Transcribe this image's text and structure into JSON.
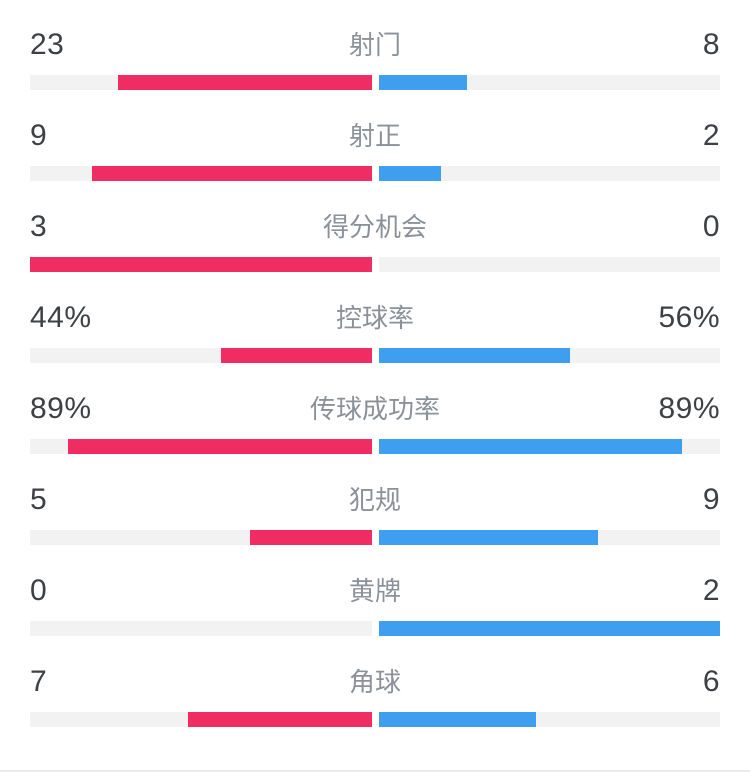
{
  "theme": {
    "page_background": "#ffffff",
    "home_color": "#f02d63",
    "away_color": "#3e9ff0",
    "track_color": "#f2f2f3",
    "number_color": "#3d4145",
    "label_color": "#8b9199",
    "divider_color": "#ededed"
  },
  "stats": [
    {
      "label": "射门",
      "home": "23",
      "away": "8",
      "home_pct": 74.2,
      "away_pct": 25.8
    },
    {
      "label": "射正",
      "home": "9",
      "away": "2",
      "home_pct": 81.8,
      "away_pct": 18.2
    },
    {
      "label": "得分机会",
      "home": "3",
      "away": "0",
      "home_pct": 100,
      "away_pct": 0
    },
    {
      "label": "控球率",
      "home": "44%",
      "away": "56%",
      "home_pct": 44,
      "away_pct": 56
    },
    {
      "label": "传球成功率",
      "home": "89%",
      "away": "89%",
      "home_pct": 89,
      "away_pct": 89
    },
    {
      "label": "犯规",
      "home": "5",
      "away": "9",
      "home_pct": 35.7,
      "away_pct": 64.3
    },
    {
      "label": "黄牌",
      "home": "0",
      "away": "2",
      "home_pct": 0,
      "away_pct": 100
    },
    {
      "label": "角球",
      "home": "7",
      "away": "6",
      "home_pct": 53.8,
      "away_pct": 46.2
    }
  ],
  "chart_data": {
    "type": "bar",
    "orientation": "horizontal_bidirectional",
    "categories": [
      "射门",
      "射正",
      "得分机会",
      "控球率",
      "传球成功率",
      "犯规",
      "黄牌",
      "角球"
    ],
    "units": [
      "count",
      "count",
      "count",
      "percent",
      "percent",
      "count",
      "count",
      "count"
    ],
    "series": [
      {
        "name": "left_team",
        "color": "#f02d63",
        "values": [
          23,
          9,
          3,
          44,
          89,
          5,
          0,
          7
        ],
        "display": [
          "23",
          "9",
          "3",
          "44%",
          "89%",
          "5",
          "0",
          "7"
        ]
      },
      {
        "name": "right_team",
        "color": "#3e9ff0",
        "values": [
          8,
          2,
          0,
          56,
          89,
          9,
          2,
          6
        ],
        "display": [
          "8",
          "2",
          "0",
          "56%",
          "89%",
          "9",
          "2",
          "6"
        ]
      }
    ],
    "bar_scaling": "count_rows_scaled_by_share_of_row_total_percent_rows_scaled_by_percent_value",
    "legend_position": "none",
    "grid": false
  }
}
